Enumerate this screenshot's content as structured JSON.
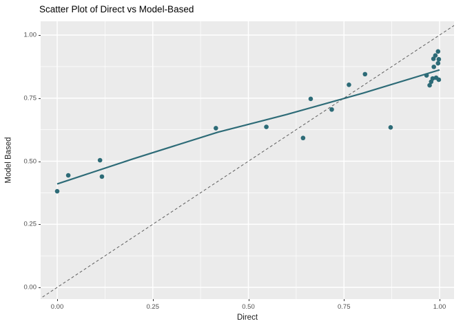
{
  "chart_data": {
    "type": "scatter",
    "title": "Scatter Plot of Direct vs Model-Based",
    "xlabel": "Direct",
    "ylabel": "Model Based",
    "xlim": [
      -0.045,
      1.04
    ],
    "ylim": [
      -0.047,
      1.055
    ],
    "grid": true,
    "legend": "none",
    "x_ticks": {
      "values": [
        0,
        0.25,
        0.5,
        0.75,
        1.0
      ],
      "labels": [
        "0.00",
        "0.25",
        "0.50",
        "0.75",
        "1.00"
      ]
    },
    "y_ticks": {
      "values": [
        0,
        0.25,
        0.5,
        0.75,
        1.0
      ],
      "labels": [
        "0.00",
        "0.25",
        "0.50",
        "0.75",
        "1.00"
      ]
    },
    "minor_tick_values": [
      0.125,
      0.375,
      0.625,
      0.875
    ],
    "points": [
      [
        0.0,
        0.381
      ],
      [
        0.029,
        0.444
      ],
      [
        0.112,
        0.504
      ],
      [
        0.117,
        0.439
      ],
      [
        0.415,
        0.631
      ],
      [
        0.547,
        0.636
      ],
      [
        0.643,
        0.592
      ],
      [
        0.663,
        0.747
      ],
      [
        0.718,
        0.705
      ],
      [
        0.763,
        0.803
      ],
      [
        0.805,
        0.845
      ],
      [
        0.872,
        0.634
      ],
      [
        0.966,
        0.84
      ],
      [
        0.974,
        0.801
      ],
      [
        0.978,
        0.815
      ],
      [
        0.982,
        0.828
      ],
      [
        0.991,
        0.831
      ],
      [
        0.998,
        0.823
      ],
      [
        0.985,
        0.874
      ],
      [
        0.996,
        0.888
      ],
      [
        0.984,
        0.906
      ],
      [
        0.998,
        0.904
      ],
      [
        0.989,
        0.919
      ],
      [
        0.996,
        0.935
      ]
    ],
    "trend_line": {
      "name": "smooth-fit",
      "path": [
        [
          0,
          0.41
        ],
        [
          0.2,
          0.51
        ],
        [
          0.42,
          0.615
        ],
        [
          0.6,
          0.685
        ],
        [
          0.8,
          0.77
        ],
        [
          1.0,
          0.862
        ]
      ]
    },
    "identity_line": {
      "name": "y-equals-x",
      "from": [
        -0.06,
        -0.06
      ],
      "to": [
        1.07,
        1.07
      ],
      "style": "dashed"
    },
    "colors": {
      "point": "#2d6b77",
      "trend": "#2d6b77",
      "identity": "#5c5c5c",
      "panel_bg": "#ebebeb",
      "grid_major": "#ffffff",
      "grid_minor": "#ffffff",
      "tick_label": "#4d4d4d",
      "axis_title": "#1a1a1a",
      "title": "#000000"
    }
  }
}
